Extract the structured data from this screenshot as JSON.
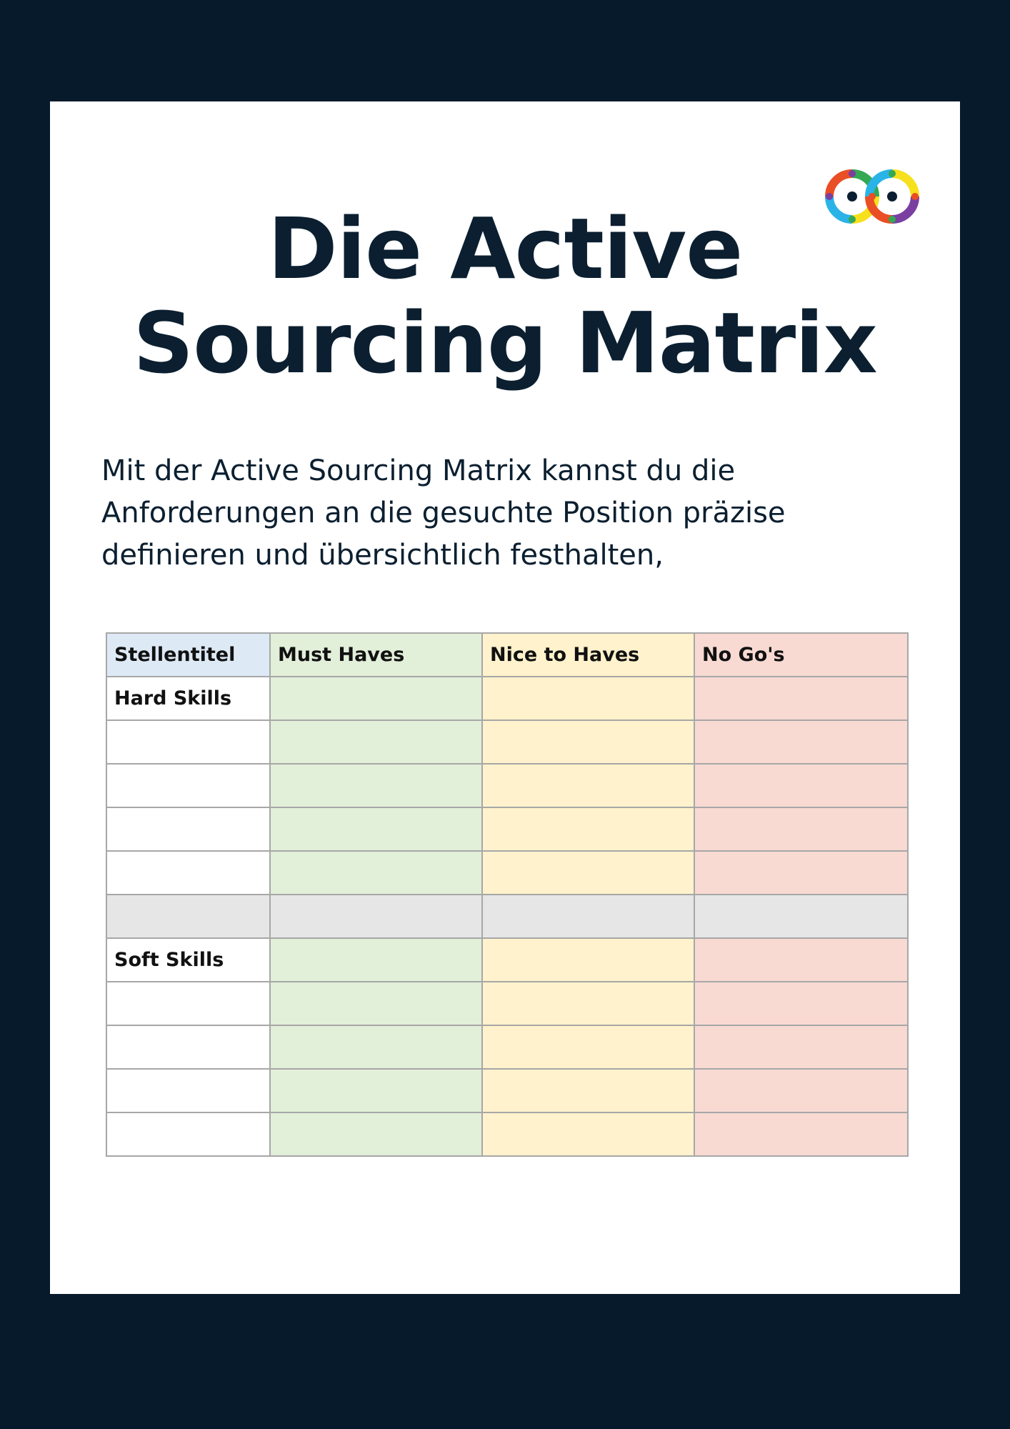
{
  "page": {
    "background_color": "#061a2b",
    "card_color": "#ffffff",
    "text_color": "#0b1f30"
  },
  "logo": {
    "icon": "infinity-loop-logo",
    "colors": [
      "#e94e25",
      "#34a853",
      "#2ab3e6",
      "#f7e01d",
      "#7a3fa0"
    ]
  },
  "title": {
    "line1": "Die Active",
    "line2": "Sourcing Matrix"
  },
  "intro": {
    "line1": "Mit der Active Sourcing Matrix kannst du die",
    "line2": "Anforderungen an die gesuchte Position präzise",
    "line3": "definieren und übersichtlich festhalten,"
  },
  "matrix": {
    "headers": [
      "Stellentitel",
      "Must Haves",
      "Nice to Haves",
      "No Go's"
    ],
    "row_labels": [
      "Hard Skills",
      "",
      "",
      "",
      "",
      "",
      "Soft Skills",
      "",
      "",
      "",
      ""
    ],
    "colors": {
      "header_label": "#dde9f5",
      "must": "#e2efd9",
      "nice": "#fff2cc",
      "nogo": "#f8dad3",
      "separator": "#e6e6e6",
      "border": "#a7a7a7"
    }
  }
}
